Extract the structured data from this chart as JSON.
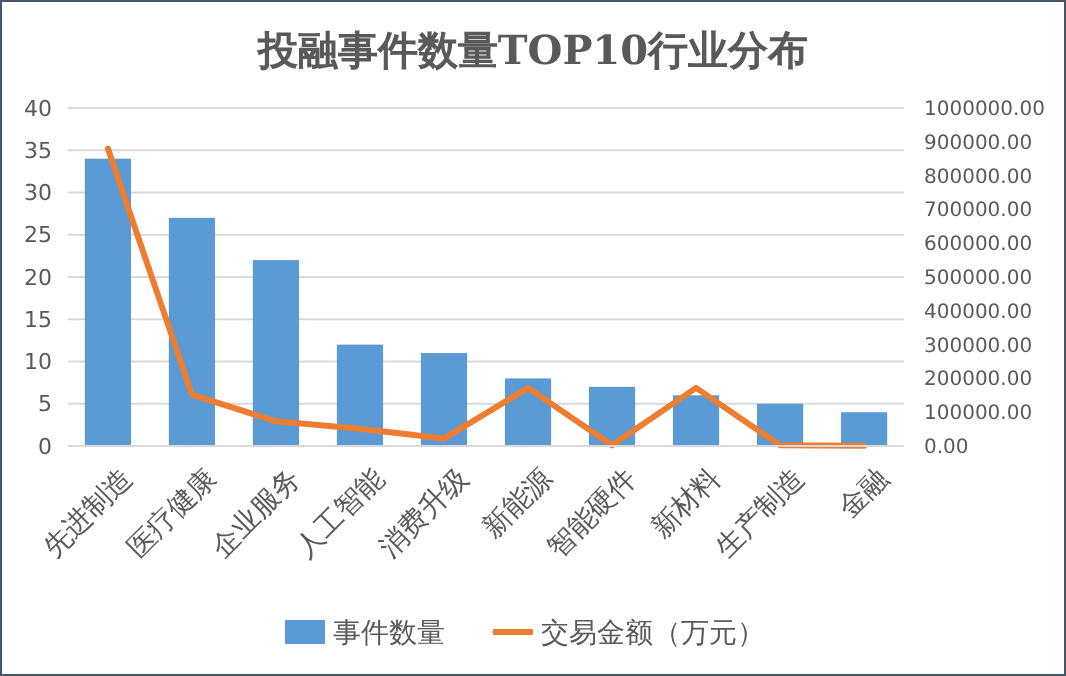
{
  "chart_data": {
    "type": "bar",
    "title": "投融事件数量TOP10行业分布",
    "categories": [
      "先进制造",
      "医疗健康",
      "企业服务",
      "人工智能",
      "消费升级",
      "新能源",
      "智能硬件",
      "新材料",
      "生产制造",
      "金融"
    ],
    "series": [
      {
        "name": "事件数量",
        "color": "#5b9bd5",
        "values": [
          34,
          27,
          22,
          12,
          11,
          8,
          7,
          6,
          5,
          4
        ]
      },
      {
        "name": "交易金额（万元）",
        "type": "line",
        "axis": "y2",
        "color": "#ed7d31",
        "values": [
          880000,
          152000,
          73000,
          51000,
          22000,
          172000,
          2000,
          172000,
          2000,
          1000
        ]
      }
    ],
    "ylim": [
      0,
      40
    ],
    "yticks": [
      0,
      5,
      10,
      15,
      20,
      25,
      30,
      35,
      40
    ],
    "y2lim": [
      0,
      1000000
    ],
    "y2ticks": [
      {
        "value": 0,
        "label": "0.00"
      },
      {
        "value": 100000,
        "label": "100000.00"
      },
      {
        "value": 200000,
        "label": "200000.00"
      },
      {
        "value": 300000,
        "label": "300000.00"
      },
      {
        "value": 400000,
        "label": "400000.00"
      },
      {
        "value": 500000,
        "label": "500000.00"
      },
      {
        "value": 600000,
        "label": "600000.00"
      },
      {
        "value": 700000,
        "label": "700000.00"
      },
      {
        "value": 800000,
        "label": "800000.00"
      },
      {
        "value": 900000,
        "label": "900000.00"
      },
      {
        "value": 1000000,
        "label": "1000000.00"
      }
    ],
    "grid": "y",
    "legend": "bottom",
    "marker": "none",
    "line_style": "solid"
  }
}
